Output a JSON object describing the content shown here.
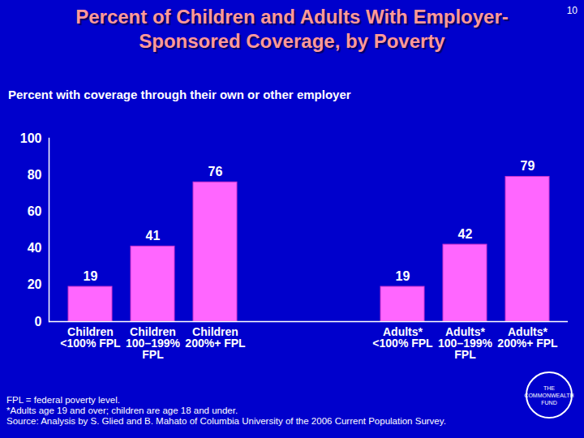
{
  "chart_data": {
    "type": "bar",
    "title": "Percent of Children and Adults With Employer-Sponsored Coverage, by Poverty",
    "subtitle": "Percent with coverage through their own or other employer",
    "categories": [
      "Children\n<100% FPL",
      "Children\n100–199%\nFPL",
      "Children\n200%+ FPL",
      "Adults*\n<100% FPL",
      "Adults*\n100–199%\nFPL",
      "Adults*\n200%+ FPL"
    ],
    "values": [
      19,
      41,
      76,
      19,
      42,
      79
    ],
    "color": "#ff66ff",
    "ylim": [
      0,
      100
    ],
    "yticks": [
      0,
      20,
      40,
      60,
      80,
      100
    ],
    "grid": false,
    "data_labels": true,
    "notes": [
      "FPL = federal poverty level.",
      "*Adults age 19 and over; children are age 18 and under.",
      "Source: Analysis by S. Glied and B. Mahato of Columbia University of the 2006 Current Population Survey."
    ],
    "page_number": "10",
    "logo": "THE COMMONWEALTH FUND"
  }
}
